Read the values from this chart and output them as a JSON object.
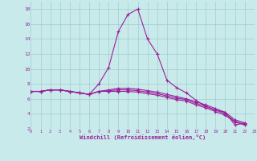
{
  "xlabel": "Windchill (Refroidissement éolien,°C)",
  "background_color": "#c8eaea",
  "grid_color": "#a0cccc",
  "line_color": "#9b1f9b",
  "x": [
    0,
    1,
    2,
    3,
    4,
    5,
    6,
    7,
    8,
    9,
    10,
    11,
    12,
    13,
    14,
    15,
    16,
    17,
    18,
    19,
    20,
    21,
    22,
    23
  ],
  "line1": [
    7.0,
    7.0,
    7.2,
    7.2,
    7.0,
    6.8,
    6.6,
    8.0,
    10.2,
    15.0,
    17.3,
    18.0,
    14.0,
    12.0,
    8.5,
    7.5,
    6.8,
    5.8,
    5.0,
    4.5,
    4.2,
    2.5,
    2.8,
    null
  ],
  "line2": [
    7.0,
    7.0,
    7.2,
    7.2,
    7.0,
    6.8,
    6.6,
    7.0,
    7.2,
    7.4,
    7.4,
    7.3,
    7.1,
    6.9,
    6.6,
    6.3,
    6.0,
    5.6,
    5.2,
    4.7,
    4.2,
    3.2,
    2.8,
    null
  ],
  "line3": [
    7.0,
    7.0,
    7.2,
    7.2,
    7.0,
    6.8,
    6.6,
    7.0,
    7.1,
    7.2,
    7.2,
    7.1,
    6.9,
    6.7,
    6.4,
    6.1,
    5.9,
    5.4,
    5.0,
    4.5,
    4.0,
    3.0,
    2.6,
    null
  ],
  "line4": [
    7.0,
    7.0,
    7.2,
    7.2,
    7.0,
    6.8,
    6.6,
    7.0,
    7.0,
    7.0,
    7.0,
    6.9,
    6.7,
    6.5,
    6.2,
    5.9,
    5.7,
    5.2,
    4.8,
    4.3,
    3.8,
    2.9,
    2.5,
    null
  ],
  "ylim": [
    2,
    19
  ],
  "xlim": [
    0,
    23
  ],
  "yticks": [
    2,
    4,
    6,
    8,
    10,
    12,
    14,
    16,
    18
  ],
  "xticks": [
    0,
    1,
    2,
    3,
    4,
    5,
    6,
    7,
    8,
    9,
    10,
    11,
    12,
    13,
    14,
    15,
    16,
    17,
    18,
    19,
    20,
    21,
    22,
    23
  ]
}
